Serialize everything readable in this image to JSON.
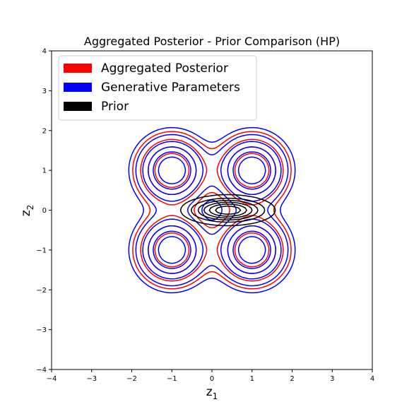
{
  "chart_data": {
    "type": "contour",
    "title": "Aggregated Posterior - Prior Comparison (HP)",
    "xlabel": "z",
    "xlabel_sub": "1",
    "ylabel": "z",
    "ylabel_sub": "2",
    "xlim": [
      -4,
      4
    ],
    "ylim": [
      -4,
      4
    ],
    "xticks": [
      -4,
      -3,
      -2,
      -1,
      0,
      1,
      2,
      3,
      4
    ],
    "yticks": [
      -4,
      -3,
      -2,
      -1,
      0,
      1,
      2,
      3,
      4
    ],
    "grid": false,
    "legend_position": "upper-left",
    "series": [
      {
        "name": "Aggregated Posterior",
        "color": "#ff0000",
        "components": [
          {
            "mean": [
              -1,
              1
            ],
            "std": [
              0.5,
              0.5
            ]
          },
          {
            "mean": [
              1,
              1
            ],
            "std": [
              0.5,
              0.5
            ]
          },
          {
            "mean": [
              -1,
              -1
            ],
            "std": [
              0.5,
              0.5
            ]
          },
          {
            "mean": [
              1,
              -1
            ],
            "std": [
              0.5,
              0.5
            ]
          }
        ],
        "levels": [
          0.15,
          0.3,
          0.5,
          0.7
        ]
      },
      {
        "name": "Generative Parameters",
        "color": "#0000ff",
        "components": [
          {
            "mean": [
              -1,
              1
            ],
            "std": [
              0.5,
              0.5
            ]
          },
          {
            "mean": [
              1,
              1
            ],
            "std": [
              0.5,
              0.5
            ]
          },
          {
            "mean": [
              -1,
              -1
            ],
            "std": [
              0.5,
              0.5
            ]
          },
          {
            "mean": [
              1,
              -1
            ],
            "std": [
              0.5,
              0.5
            ]
          }
        ],
        "levels": [
          0.1,
          0.2,
          0.35,
          0.5,
          0.65,
          0.8
        ]
      },
      {
        "name": "Prior",
        "color": "#000000",
        "components": [
          {
            "mean": [
              0.4,
              0
            ],
            "std": [
              0.55,
              0.18
            ]
          }
        ],
        "levels": [
          0.1,
          0.25,
          0.4,
          0.55,
          0.7,
          0.85
        ]
      }
    ]
  }
}
